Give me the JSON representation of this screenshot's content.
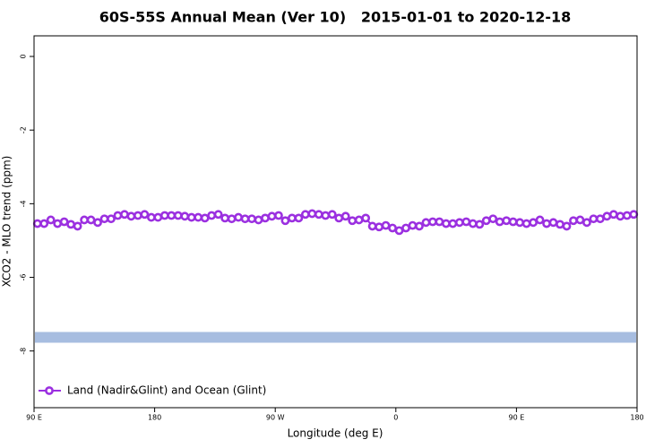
{
  "chart_data": {
    "type": "line",
    "title": "60S-55S Annual Mean (Ver 10)   2015-01-01 to 2020-12-18",
    "x_label": "Longitude (deg E)",
    "y_label": "XCO2 - MLO trend (ppm)",
    "x": [
      92.5,
      97.5,
      102.5,
      107.5,
      112.5,
      117.5,
      122.5,
      127.5,
      132.5,
      137.5,
      142.5,
      147.5,
      152.5,
      157.5,
      162.5,
      167.5,
      172.5,
      177.5,
      182.5,
      187.5,
      192.5,
      197.5,
      202.5,
      207.5,
      212.5,
      217.5,
      222.5,
      227.5,
      232.5,
      237.5,
      242.5,
      247.5,
      252.5,
      257.5,
      262.5,
      267.5,
      272.5,
      277.5,
      282.5,
      287.5,
      292.5,
      297.5,
      302.5,
      307.5,
      312.5,
      317.5,
      322.5,
      327.5,
      332.5,
      337.5,
      342.5,
      347.5,
      352.5,
      357.5,
      362.5,
      367.5,
      372.5,
      377.5,
      382.5,
      387.5,
      392.5,
      397.5,
      402.5,
      407.5,
      412.5,
      417.5,
      422.5,
      427.5,
      432.5,
      437.5,
      442.5,
      447.5,
      452.5,
      457.5,
      462.5,
      467.5,
      472.5,
      477.5,
      482.5,
      487.5,
      492.5,
      497.5,
      502.5,
      507.5,
      512.5,
      517.5,
      522.5,
      527.5,
      532.5,
      537.5
    ],
    "series": [
      {
        "name": "Land (Nadir&Glint) and Ocean (Glint)",
        "color": "#9b30e0",
        "values": [
          -4.54,
          -4.54,
          -4.44,
          -4.54,
          -4.49,
          -4.56,
          -4.61,
          -4.44,
          -4.44,
          -4.51,
          -4.41,
          -4.41,
          -4.32,
          -4.29,
          -4.34,
          -4.32,
          -4.29,
          -4.37,
          -4.37,
          -4.32,
          -4.32,
          -4.32,
          -4.34,
          -4.37,
          -4.37,
          -4.39,
          -4.32,
          -4.29,
          -4.39,
          -4.41,
          -4.37,
          -4.41,
          -4.41,
          -4.44,
          -4.39,
          -4.34,
          -4.32,
          -4.46,
          -4.39,
          -4.39,
          -4.29,
          -4.27,
          -4.29,
          -4.32,
          -4.29,
          -4.39,
          -4.34,
          -4.46,
          -4.44,
          -4.39,
          -4.61,
          -4.63,
          -4.59,
          -4.66,
          -4.73,
          -4.66,
          -4.59,
          -4.61,
          -4.51,
          -4.49,
          -4.49,
          -4.54,
          -4.54,
          -4.51,
          -4.49,
          -4.54,
          -4.56,
          -4.46,
          -4.41,
          -4.49,
          -4.46,
          -4.49,
          -4.51,
          -4.54,
          -4.51,
          -4.44,
          -4.54,
          -4.51,
          -4.56,
          -4.61,
          -4.46,
          -4.44,
          -4.51,
          -4.41,
          -4.41,
          -4.34,
          -4.29,
          -4.34,
          -4.32,
          -4.29
        ]
      }
    ],
    "band_y": -7.63,
    "band_color": "#a7bde0",
    "xlim": [
      90,
      540
    ],
    "xticks": [
      {
        "value": 90,
        "label": "90 E"
      },
      {
        "value": 180,
        "label": "180"
      },
      {
        "value": 270,
        "label": "90 W"
      },
      {
        "value": 360,
        "label": "0"
      },
      {
        "value": 450,
        "label": "90 E"
      },
      {
        "value": 540,
        "label": "180"
      }
    ],
    "ylim": [
      -9.54,
      0.56
    ],
    "yticks": [
      0,
      -2,
      -4,
      -6,
      -8
    ],
    "legend": "bottomleft"
  }
}
